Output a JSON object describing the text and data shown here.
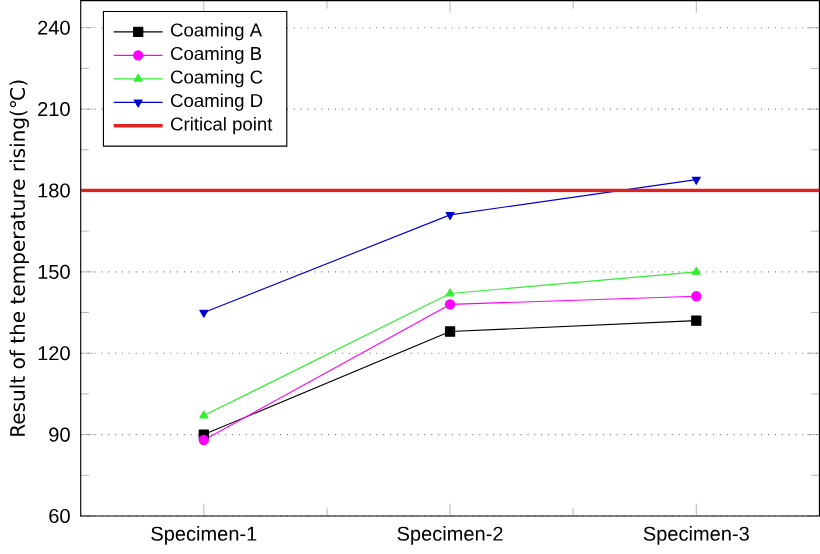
{
  "chart_data": {
    "type": "line",
    "ylabel": "Result of the temperature rising(℃)",
    "categories": [
      "Specimen-1",
      "Specimen-2",
      "Specimen-3"
    ],
    "series": [
      {
        "name": "Coaming A",
        "color": "#000000",
        "marker": "square",
        "values": [
          90,
          128,
          132
        ]
      },
      {
        "name": "Coaming B",
        "color": "#ff00ff",
        "marker": "circle",
        "values": [
          88,
          138,
          141
        ]
      },
      {
        "name": "Coaming C",
        "color": "#33ee33",
        "marker": "triangle",
        "values": [
          97,
          142,
          150
        ]
      },
      {
        "name": "Coaming D",
        "color": "#0000cc",
        "marker": "triangle-down",
        "values": [
          135,
          171,
          184
        ]
      }
    ],
    "ref_lines": [
      {
        "axis": "y",
        "value": 180,
        "label": "Critical point",
        "color": "#dd2222"
      }
    ],
    "ylim": [
      60,
      250
    ],
    "yticks": [
      60,
      90,
      120,
      150,
      180,
      210,
      240
    ],
    "grid": "y",
    "legend": "top left",
    "line_style": "solid"
  }
}
